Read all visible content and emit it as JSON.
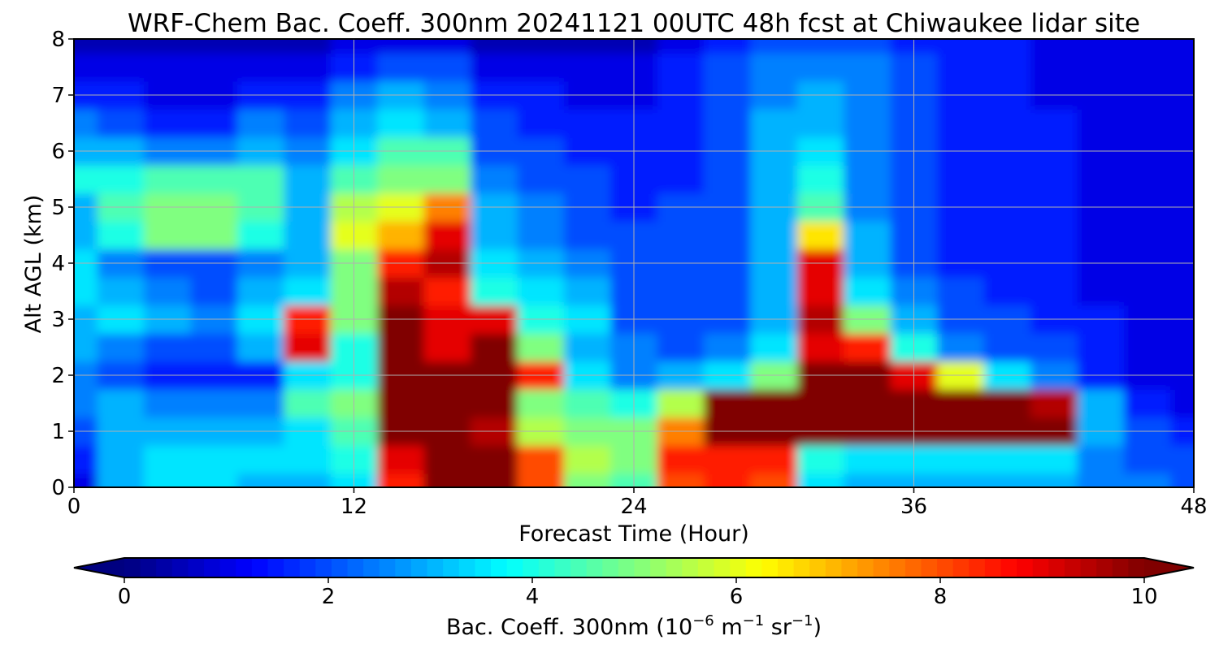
{
  "chart_data": {
    "type": "heatmap",
    "title": "WRF-Chem Bac. Coeff. 300nm  20241121 00UTC 48h fcst at Chiwaukee lidar site",
    "xlabel": "Forecast Time (Hour)",
    "ylabel": "Alt AGL (km)",
    "xlim": [
      0,
      48
    ],
    "ylim": [
      0,
      8
    ],
    "xticks": [
      0,
      12,
      24,
      36,
      48
    ],
    "yticks": [
      0,
      1,
      2,
      3,
      4,
      5,
      6,
      7,
      8
    ],
    "grid": true,
    "colorbar": {
      "label_main": "Bac. Coeff. 300nm  (10",
      "label_exp1": "−6",
      "label_mid": " m",
      "label_exp2": "−1",
      "label_mid2": " sr",
      "label_exp3": "−1",
      "label_end": ")",
      "range": [
        0,
        10
      ],
      "ticks": [
        0,
        2,
        4,
        6,
        8,
        10
      ],
      "extend": "both",
      "colormap": "jet"
    },
    "x": [
      0,
      2,
      4,
      6,
      8,
      10,
      12,
      14,
      16,
      18,
      20,
      22,
      24,
      26,
      28,
      30,
      32,
      34,
      36,
      38,
      40,
      42,
      44,
      46,
      48
    ],
    "y": [
      0,
      0.5,
      1,
      1.5,
      2,
      2.5,
      3,
      3.5,
      4,
      4.5,
      5,
      5.5,
      6,
      6.5,
      7,
      7.5,
      8
    ],
    "z": [
      [
        1.0,
        3.0,
        3.5,
        3.5,
        3.0,
        3.0,
        3.5,
        8.5,
        11,
        11,
        8.0,
        5.0,
        4.5,
        8.0,
        8.5,
        8.0,
        3.5,
        3.0,
        3.0,
        3.0,
        3.0,
        3.0,
        2.5,
        2.5,
        2.0
      ],
      [
        1.5,
        3.0,
        3.5,
        3.5,
        3.5,
        3.5,
        4.0,
        9.0,
        11,
        10,
        8.0,
        5.5,
        5.0,
        8.5,
        8.5,
        8.5,
        4.0,
        3.5,
        3.5,
        3.5,
        3.5,
        3.5,
        2.5,
        2.0,
        2.0
      ],
      [
        2.0,
        3.0,
        3.0,
        3.0,
        3.0,
        3.5,
        4.5,
        10,
        11,
        9.5,
        5.5,
        5.0,
        5.0,
        7.5,
        10,
        11,
        11,
        11,
        11,
        11,
        11,
        10,
        3.0,
        2.0,
        1.5
      ],
      [
        2.5,
        3.0,
        2.5,
        2.5,
        2.5,
        4.5,
        5.0,
        10,
        11,
        10,
        5.0,
        4.5,
        4.0,
        5.5,
        11,
        11,
        11,
        11,
        11,
        11,
        11,
        9.5,
        3.0,
        1.5,
        1.0
      ],
      [
        2.5,
        2.0,
        1.5,
        1.5,
        1.5,
        3.5,
        4.0,
        11,
        10,
        10,
        8.5,
        3.5,
        2.5,
        3.0,
        3.5,
        5.0,
        10,
        10,
        9.0,
        6.0,
        3.5,
        2.5,
        1.5,
        1.0,
        1.0
      ],
      [
        3.0,
        2.5,
        2.0,
        2.0,
        3.0,
        9.0,
        4.0,
        11,
        9.0,
        10,
        5.0,
        3.0,
        2.5,
        2.0,
        2.5,
        3.5,
        9.0,
        8.5,
        4.0,
        2.5,
        2.0,
        2.0,
        1.5,
        1.0,
        1.0
      ],
      [
        3.0,
        3.5,
        3.0,
        2.5,
        3.5,
        8.5,
        5.0,
        10,
        9.0,
        9.0,
        4.0,
        3.5,
        2.0,
        2.0,
        2.0,
        3.0,
        9.5,
        5.0,
        3.0,
        2.0,
        2.0,
        1.5,
        1.5,
        1.0,
        1.0
      ],
      [
        3.5,
        3.0,
        2.5,
        2.0,
        3.0,
        3.5,
        5.0,
        9.5,
        8.5,
        4.0,
        3.5,
        3.0,
        2.0,
        2.0,
        2.0,
        3.0,
        9.0,
        3.5,
        2.5,
        2.0,
        1.5,
        1.5,
        1.0,
        1.0,
        1.0
      ],
      [
        3.5,
        2.5,
        2.0,
        2.0,
        2.5,
        3.0,
        5.0,
        8.5,
        9.5,
        3.5,
        3.0,
        2.5,
        2.0,
        2.0,
        2.0,
        3.0,
        9.0,
        3.0,
        2.0,
        1.5,
        1.5,
        1.5,
        1.0,
        1.0,
        1.0
      ],
      [
        3.0,
        4.0,
        5.0,
        5.0,
        4.0,
        3.0,
        6.0,
        7.0,
        9.0,
        3.0,
        2.5,
        2.0,
        2.0,
        2.0,
        2.0,
        3.0,
        6.5,
        3.0,
        2.0,
        1.5,
        1.5,
        1.5,
        1.0,
        1.0,
        1.0
      ],
      [
        3.0,
        4.5,
        5.0,
        5.0,
        4.5,
        3.0,
        5.5,
        6.0,
        7.5,
        3.0,
        2.5,
        2.0,
        1.5,
        2.0,
        2.0,
        3.0,
        4.5,
        2.5,
        2.0,
        1.5,
        1.5,
        1.5,
        1.0,
        1.0,
        1.0
      ],
      [
        4.0,
        4.0,
        4.5,
        4.5,
        4.5,
        3.0,
        4.5,
        5.0,
        5.0,
        2.5,
        2.0,
        2.0,
        1.5,
        1.5,
        2.0,
        3.0,
        4.0,
        2.5,
        2.0,
        1.5,
        1.5,
        1.5,
        1.0,
        1.0,
        1.0
      ],
      [
        3.0,
        3.0,
        2.5,
        2.5,
        3.0,
        2.5,
        3.5,
        4.5,
        4.5,
        2.0,
        2.0,
        1.5,
        1.5,
        1.5,
        2.0,
        3.0,
        3.5,
        2.5,
        2.0,
        1.5,
        1.5,
        1.5,
        1.0,
        1.0,
        1.0
      ],
      [
        2.5,
        2.0,
        1.5,
        1.5,
        2.5,
        2.0,
        3.0,
        3.5,
        3.0,
        2.0,
        1.5,
        1.5,
        1.5,
        1.5,
        2.0,
        3.0,
        3.0,
        2.5,
        2.0,
        1.5,
        1.5,
        1.5,
        1.0,
        1.0,
        1.0
      ],
      [
        1.5,
        1.5,
        1.0,
        1.0,
        1.5,
        1.5,
        2.5,
        3.0,
        2.5,
        1.5,
        1.5,
        1.0,
        1.0,
        1.5,
        2.0,
        2.5,
        3.0,
        2.5,
        2.0,
        1.5,
        1.5,
        1.0,
        1.0,
        1.0,
        1.0
      ],
      [
        1.0,
        1.0,
        1.0,
        1.0,
        1.0,
        1.0,
        1.5,
        2.0,
        2.0,
        1.0,
        1.0,
        1.0,
        1.0,
        1.5,
        2.0,
        2.5,
        2.5,
        2.5,
        2.0,
        1.5,
        1.5,
        1.0,
        1.0,
        1.0,
        1.0
      ],
      [
        0.5,
        0.5,
        0.5,
        0.5,
        0.5,
        0.5,
        1.0,
        1.0,
        1.0,
        0.5,
        0.5,
        0.5,
        0.5,
        1.0,
        1.5,
        2.0,
        2.0,
        2.0,
        1.5,
        1.5,
        1.5,
        1.0,
        1.0,
        1.0,
        1.0
      ]
    ]
  }
}
